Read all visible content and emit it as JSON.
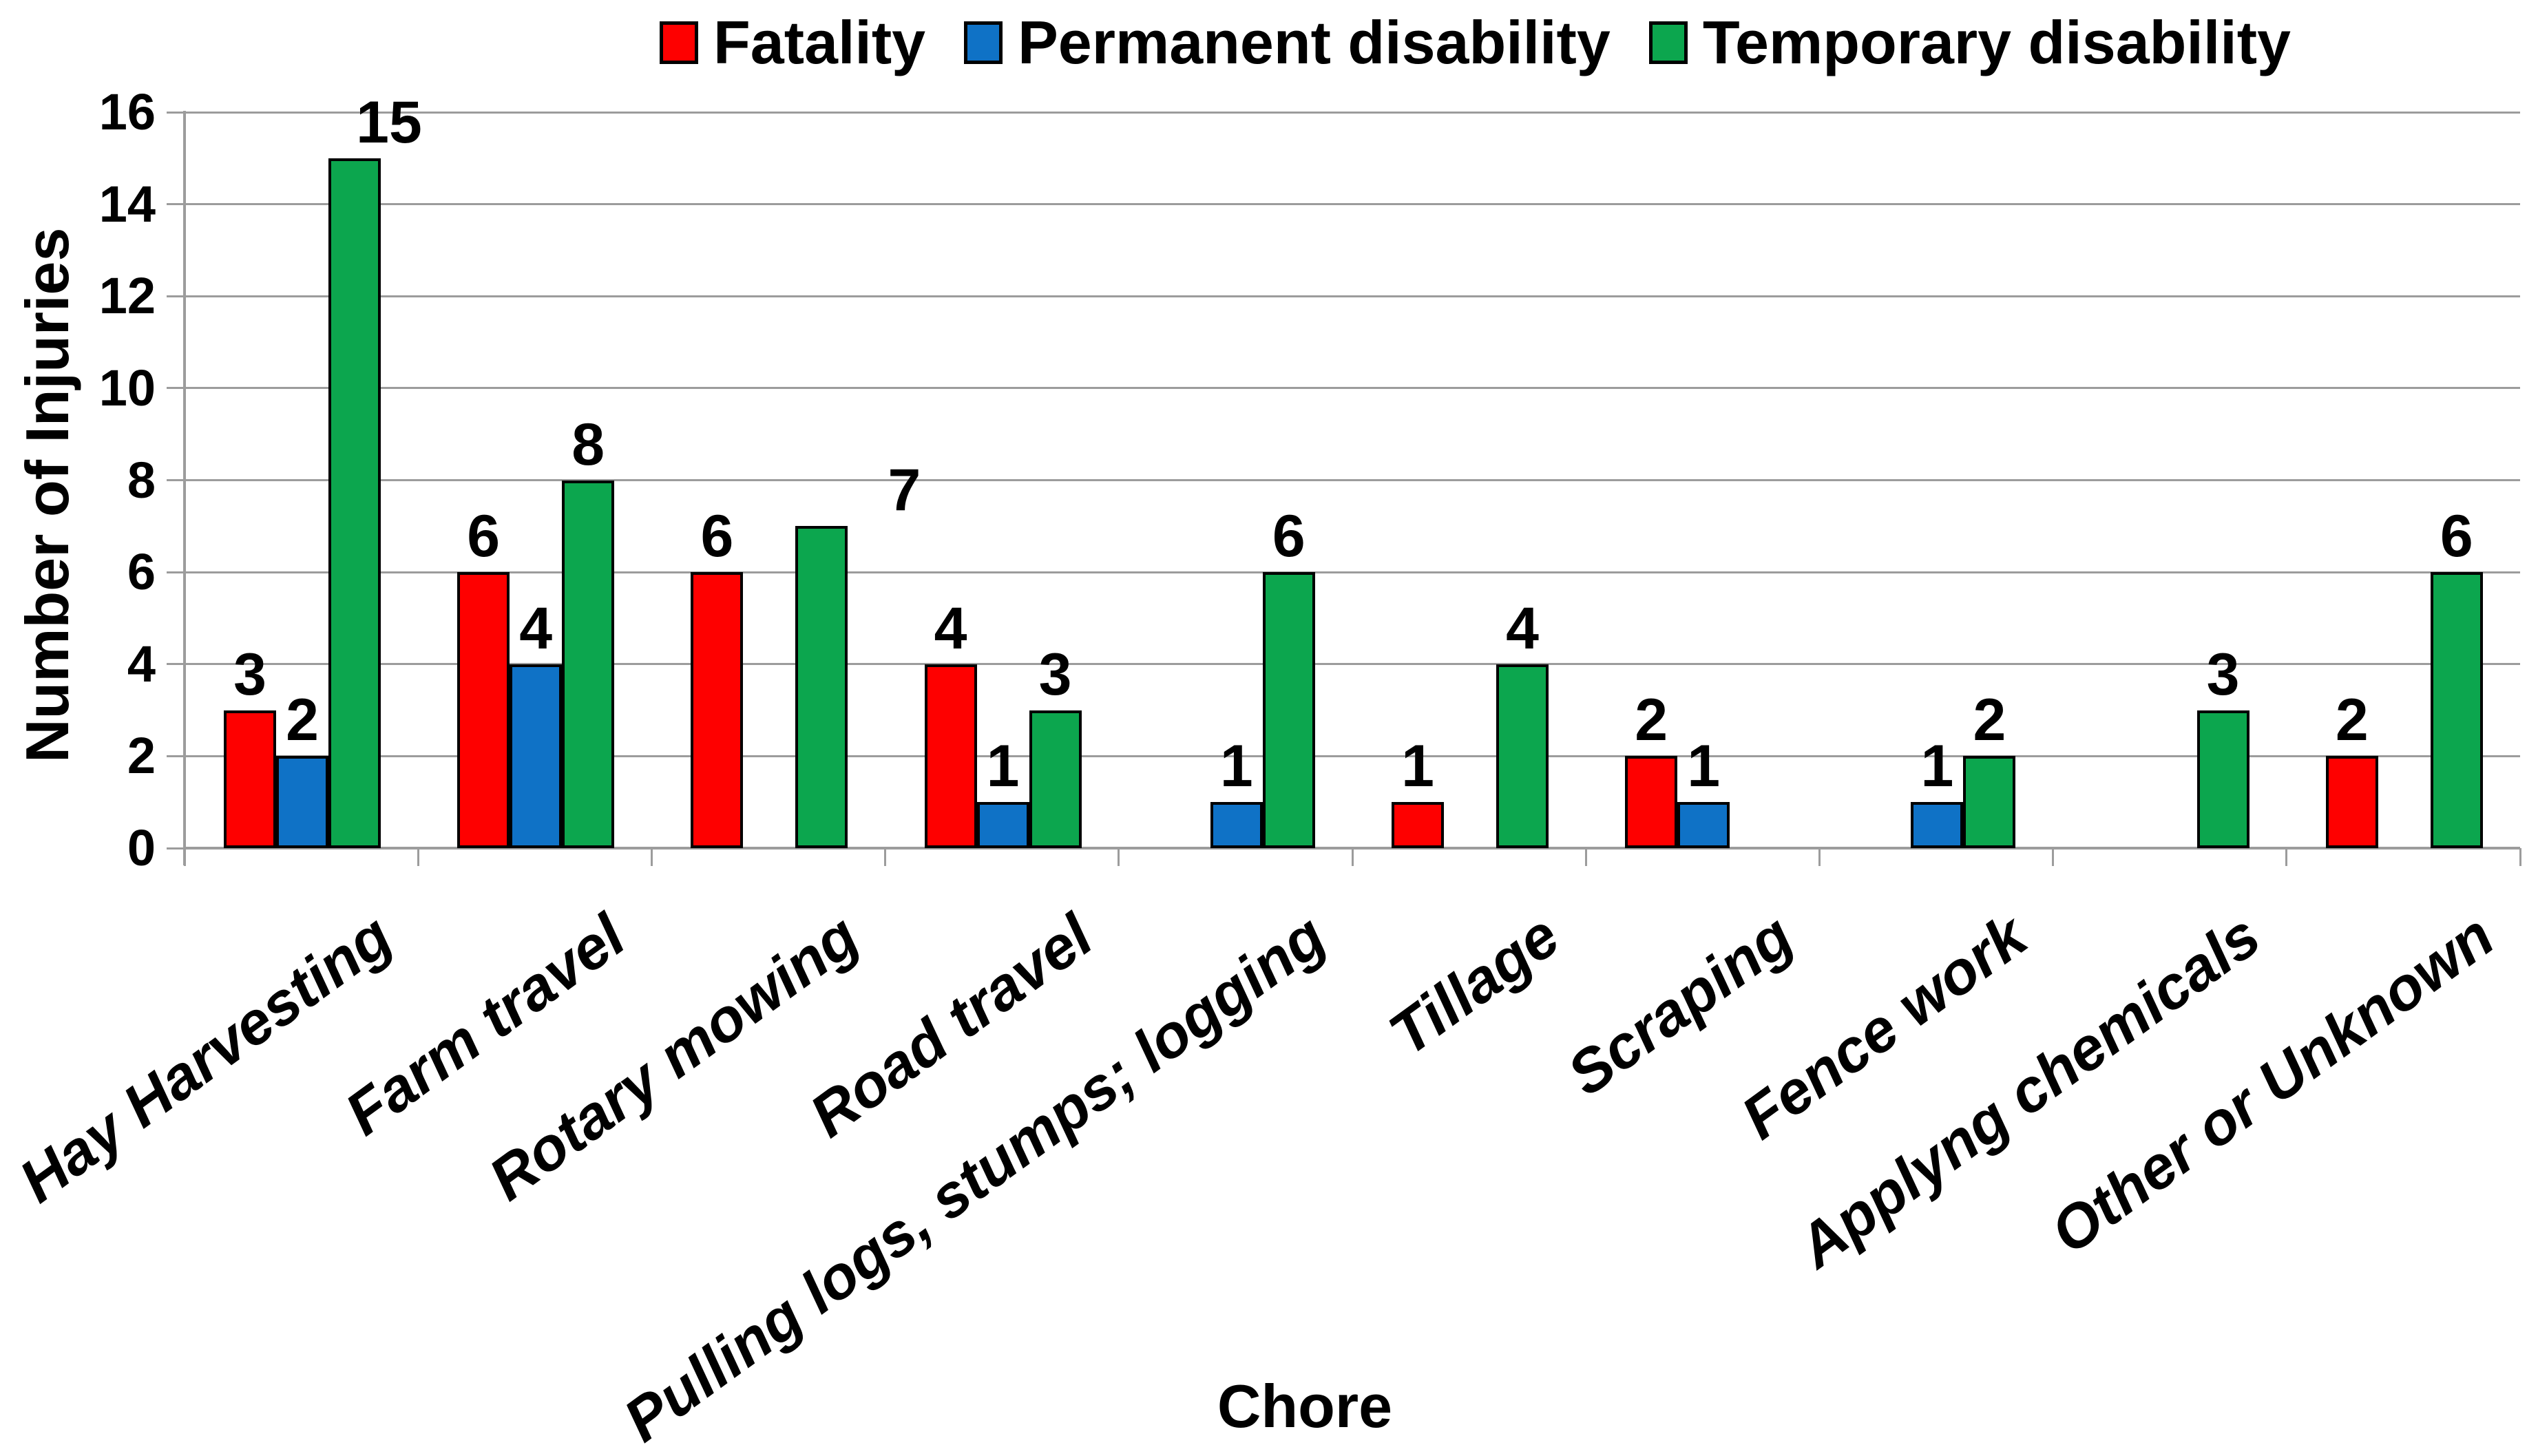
{
  "chart_data": {
    "type": "bar",
    "title": "",
    "xlabel": "Chore",
    "ylabel": "Number of Injuries",
    "ylim": [
      0,
      16
    ],
    "ytick_step": 2,
    "grid": true,
    "legend_position": "top",
    "data_labels": true,
    "categories": [
      "Hay Harvesting",
      "Farm travel",
      "Rotary mowing",
      "Road travel",
      "Pulling logs, stumps; logging",
      "Tillage",
      "Scraping",
      "Fence work",
      "Applyng chemicals",
      "Other or Unknown"
    ],
    "series": [
      {
        "name": "Fatality",
        "color": "#fe0000",
        "values": [
          3,
          6,
          6,
          4,
          0,
          1,
          2,
          0,
          0,
          2
        ]
      },
      {
        "name": "Permanent disability",
        "color": "#0f72c6",
        "values": [
          2,
          4,
          0,
          1,
          1,
          0,
          1,
          1,
          0,
          0
        ]
      },
      {
        "name": "Temporary disability",
        "color": "#0ca64e",
        "values": [
          15,
          8,
          7,
          3,
          6,
          4,
          0,
          2,
          3,
          6
        ]
      }
    ],
    "label_offsets": {
      "2_0": 50,
      "2_2": 120
    },
    "axis_color": "#9c9c9c",
    "label_color": "#000000"
  }
}
